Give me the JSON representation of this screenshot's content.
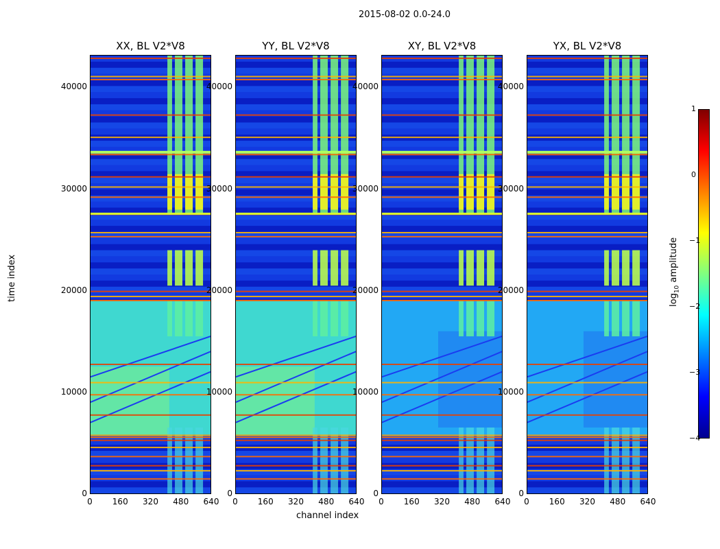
{
  "suptitle": "2015-08-02 0.0-24.0",
  "chart_data": {
    "type": "heatmap",
    "panels": [
      {
        "title": "XX, BL V2*V8",
        "cross_pol": false
      },
      {
        "title": "YY, BL V2*V8",
        "cross_pol": false
      },
      {
        "title": "XY, BL V2*V8",
        "cross_pol": true
      },
      {
        "title": "YX, BL V2*V8",
        "cross_pol": true
      }
    ],
    "xlabel": "channel index",
    "ylabel": "time index",
    "xlim": [
      0,
      640
    ],
    "ylim": [
      0,
      43200
    ],
    "xticks": [
      "0",
      "160",
      "320",
      "480",
      "640"
    ],
    "yticks": [
      "0",
      "10000",
      "20000",
      "30000",
      "40000"
    ],
    "ytick_values": [
      0,
      10000,
      20000,
      30000,
      40000
    ],
    "xtick_values": [
      0,
      160,
      320,
      480,
      640
    ],
    "colorbar": {
      "label_prefix": "log",
      "label_sub": "10",
      "label_suffix": " amplitude",
      "ticks": [
        "1",
        "0",
        "−1",
        "−2",
        "−3",
        "−4"
      ],
      "tick_values": [
        1,
        0,
        -1,
        -2,
        -3,
        -4
      ],
      "range": [
        -4,
        1
      ],
      "colormap": "jet"
    },
    "rfi_channel_bands": [
      [
        410,
        435
      ],
      [
        450,
        490
      ],
      [
        505,
        545
      ],
      [
        560,
        600
      ]
    ],
    "rfi_time_flags": [
      1500,
      2300,
      2800,
      3700,
      4600,
      5300,
      5600,
      5800,
      7800,
      9800,
      11000,
      12800,
      19100,
      19500,
      20000,
      25400,
      25800,
      27600,
      29300,
      30300,
      31300,
      33500,
      35200,
      37400,
      40900,
      41200,
      43000
    ],
    "colors": {
      "jet_dark_blue": "#00008f",
      "jet_blue": "#0000ff",
      "jet_cyan": "#00ffff",
      "jet_yellow": "#ffff00",
      "jet_red": "#ff0000",
      "jet_dark_red": "#800000"
    }
  }
}
